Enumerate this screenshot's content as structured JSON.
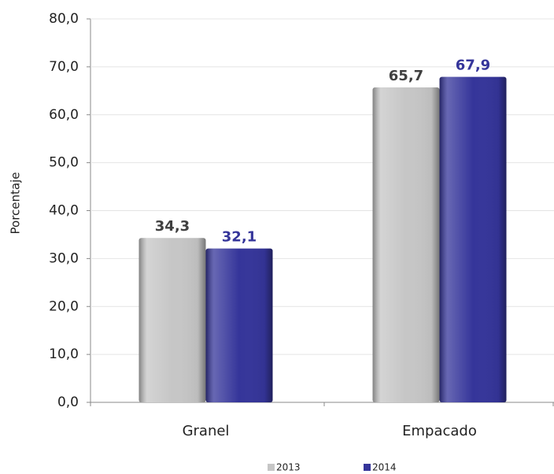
{
  "chart_data": {
    "type": "bar",
    "y_label": "Porcentaje",
    "categories": [
      "Granel",
      "Empacado"
    ],
    "series": [
      {
        "name": "2013",
        "color": "#c6c6c6",
        "label_color": "#404040",
        "values": [
          34.3,
          65.7
        ],
        "value_labels": [
          "34,3",
          "65,7"
        ]
      },
      {
        "name": "2014",
        "color": "#35359a",
        "label_color": "#35359a",
        "values": [
          32.1,
          67.9
        ],
        "value_labels": [
          "32,1",
          "67,9"
        ]
      }
    ],
    "ylim": [
      0,
      80
    ],
    "yticks": [
      {
        "value": 0,
        "label": "0,0"
      },
      {
        "value": 10,
        "label": "10,0"
      },
      {
        "value": 20,
        "label": "20,0"
      },
      {
        "value": 30,
        "label": "30,0"
      },
      {
        "value": 40,
        "label": "40,0"
      },
      {
        "value": 50,
        "label": "50,0"
      },
      {
        "value": 60,
        "label": "60,0"
      },
      {
        "value": 70,
        "label": "70,0"
      },
      {
        "value": 80,
        "label": "80,0"
      }
    ],
    "grid": true,
    "legend": "bottom"
  }
}
